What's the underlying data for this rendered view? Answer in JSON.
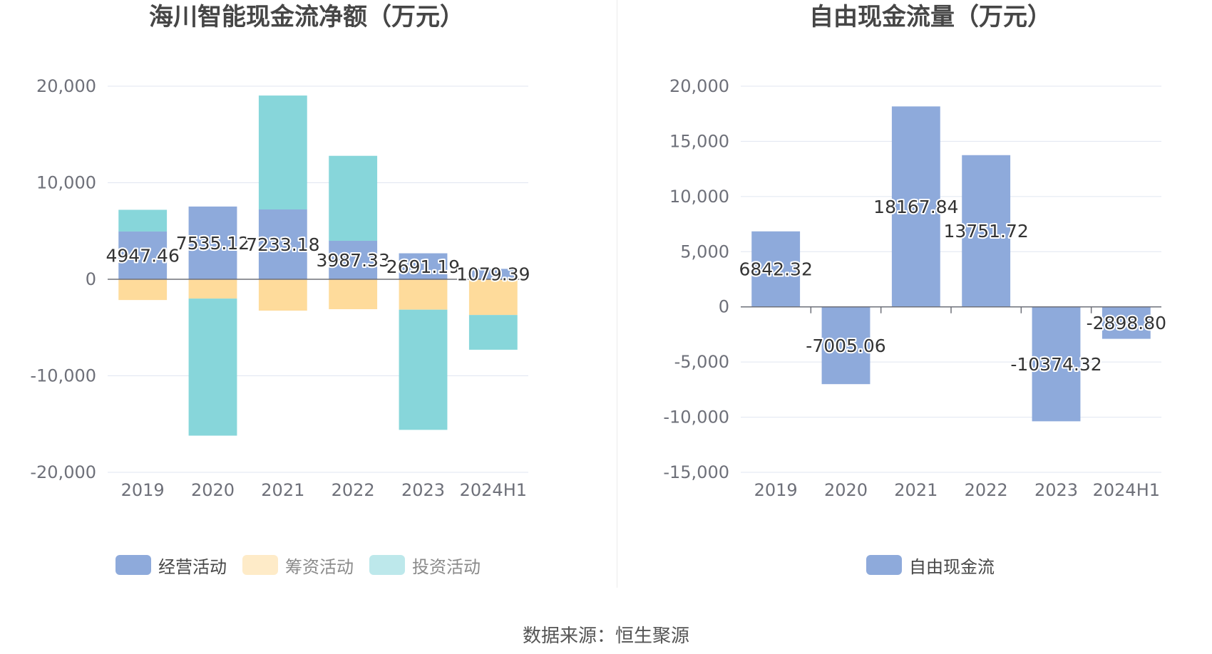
{
  "source_text": "数据来源：恒生聚源",
  "chart_data": [
    {
      "type": "bar",
      "stacked": true,
      "title": "海川智能现金流净额（万元）",
      "categories": [
        "2019",
        "2020",
        "2021",
        "2022",
        "2023",
        "2024H1"
      ],
      "ylim": [
        -20000,
        20000
      ],
      "yticks": [
        20000,
        10000,
        0,
        -10000,
        -20000
      ],
      "ytick_labels": [
        "20,000",
        "10,000",
        "0",
        "-10,000",
        "-20,000"
      ],
      "grid": true,
      "legend_position": "bottom",
      "series": [
        {
          "name": "经营活动",
          "color": "#8eaadb",
          "values": [
            4947.46,
            7535.12,
            7233.18,
            3987.33,
            2691.19,
            1079.39
          ],
          "show_labels": true,
          "labels": [
            "4947.46",
            "7535.12",
            "7233.18",
            "3987.33",
            "2691.19",
            "1079.39"
          ]
        },
        {
          "name": "筹资活动",
          "color": "#fedb9b",
          "values": [
            -2150,
            -2000,
            -3250,
            -3100,
            -3150,
            -3700
          ],
          "show_labels": false
        },
        {
          "name": "投资活动",
          "color": "#87d6da",
          "values": [
            2250,
            -14200,
            11800,
            8800,
            -12450,
            -3600
          ],
          "show_labels": false
        }
      ]
    },
    {
      "type": "bar",
      "stacked": false,
      "title": "自由现金流量（万元）",
      "categories": [
        "2019",
        "2020",
        "2021",
        "2022",
        "2023",
        "2024H1"
      ],
      "ylim": [
        -15000,
        20000
      ],
      "yticks": [
        20000,
        15000,
        10000,
        5000,
        0,
        -5000,
        -10000,
        -15000
      ],
      "ytick_labels": [
        "20,000",
        "15,000",
        "10,000",
        "5,000",
        "0",
        "-5,000",
        "-10,000",
        "-15,000"
      ],
      "grid": true,
      "legend_position": "bottom",
      "series": [
        {
          "name": "自由现金流",
          "color": "#8eaadb",
          "values": [
            6842.32,
            -7005.06,
            18167.84,
            13751.72,
            -10374.32,
            -2898.8
          ],
          "show_labels": true,
          "labels": [
            "6842.32",
            "-7005.06",
            "18167.84",
            "13751.72",
            "-10374.32",
            "-2898.80"
          ]
        }
      ]
    }
  ]
}
